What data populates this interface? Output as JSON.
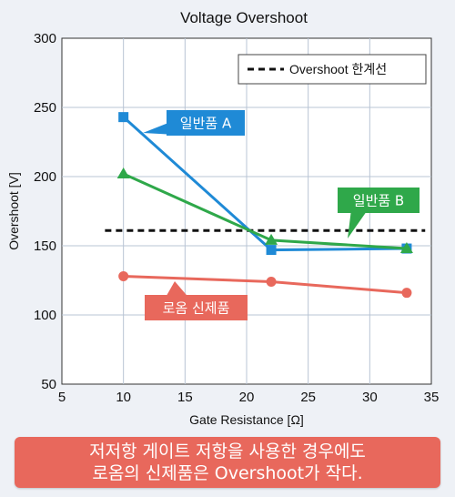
{
  "chart_data": {
    "type": "line",
    "title": "Voltage Overshoot",
    "xlabel": "Gate Resistance [Ω]",
    "ylabel": "Overshoot [V]",
    "xlim": [
      5,
      35
    ],
    "ylim": [
      50,
      300
    ],
    "xticks": [
      5,
      10,
      15,
      20,
      25,
      30,
      35
    ],
    "yticks": [
      50,
      100,
      150,
      200,
      250,
      300
    ],
    "grid": true,
    "series": [
      {
        "name": "일반품 A",
        "color": "#1f8ad6",
        "marker": "square",
        "x": [
          10,
          22,
          33
        ],
        "y": [
          243,
          147,
          148
        ]
      },
      {
        "name": "일반품 B",
        "color": "#2fa84a",
        "marker": "triangle",
        "x": [
          10,
          22,
          33
        ],
        "y": [
          202,
          154,
          148
        ]
      },
      {
        "name": "로옴 신제품",
        "color": "#e8685c",
        "marker": "circle",
        "x": [
          10,
          22,
          33
        ],
        "y": [
          128,
          124,
          116
        ]
      }
    ],
    "threshold": {
      "name": "Overshoot 한계선",
      "y": 161,
      "x_range": [
        8.5,
        34.5
      ],
      "style": "dashed",
      "color": "#111111"
    },
    "legend_position": "top-right"
  },
  "caption": {
    "line1": "저저항 게이트 저항을 사용한 경우에도",
    "line2": "로옴의 신제품은 Overshoot가 작다."
  }
}
